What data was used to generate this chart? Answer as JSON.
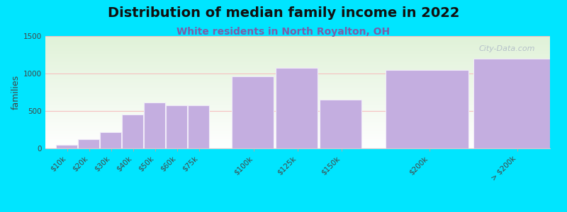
{
  "title": "Distribution of median family income in 2022",
  "subtitle": "White residents in North Royalton, OH",
  "ylabel": "families",
  "categories": [
    "$10k",
    "$20k",
    "$30k",
    "$40k",
    "$50k",
    "$60k",
    "$75k",
    "$100k",
    "$125k",
    "$150k",
    "$200k",
    "> $200k"
  ],
  "values": [
    50,
    120,
    215,
    450,
    610,
    580,
    580,
    960,
    1080,
    650,
    1050,
    1200
  ],
  "bar_positions": [
    0,
    1,
    2,
    3,
    4,
    5,
    6,
    8,
    10,
    12,
    15,
    19
  ],
  "bar_widths": [
    1,
    1,
    1,
    1,
    1,
    1,
    1,
    2,
    2,
    2,
    4,
    4
  ],
  "bar_color": "#c4aee0",
  "bar_edge_color": "#f0eaf8",
  "background_outer": "#00e5ff",
  "grad_top_color": "#e0f2d8",
  "grad_bottom_color": "#ffffff",
  "grid_color": "#f5c0c0",
  "title_fontsize": 14,
  "subtitle_fontsize": 10,
  "subtitle_color": "#7b5ea7",
  "ylabel_fontsize": 9,
  "tick_fontsize": 7.5,
  "ylim": [
    0,
    1500
  ],
  "yticks": [
    0,
    500,
    1000,
    1500
  ],
  "watermark_text": "City-Data.com",
  "watermark_color": "#aab4c4"
}
